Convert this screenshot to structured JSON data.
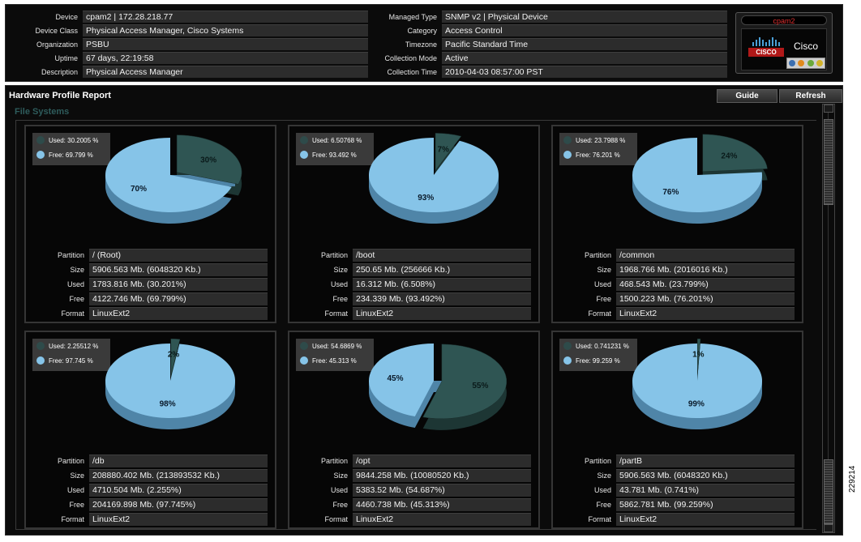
{
  "header": {
    "left": [
      {
        "label": "Device",
        "value": "cpam2 | 172.28.218.77"
      },
      {
        "label": "Device Class",
        "value": "Physical Access Manager, Cisco Systems"
      },
      {
        "label": "Organization",
        "value": "PSBU"
      },
      {
        "label": "Uptime",
        "value": "67 days, 22:19:58"
      },
      {
        "label": "Description",
        "value": "Physical Access Manager"
      }
    ],
    "right": [
      {
        "label": "Managed Type",
        "value": "SNMP v2 | Physical Device"
      },
      {
        "label": "Category",
        "value": "Access Control"
      },
      {
        "label": "Timezone",
        "value": "Pacific Standard Time"
      },
      {
        "label": "Collection Mode",
        "value": "Active"
      },
      {
        "label": "Collection Time",
        "value": "2010-04-03 08:57:00 PST"
      }
    ],
    "badge": {
      "name": "cpam2",
      "vendor": "Cisco",
      "logo_word": "CISCO"
    }
  },
  "report": {
    "title": "Hardware Profile Report",
    "section": "File Systems",
    "guide_label": "Guide",
    "refresh_label": "Refresh"
  },
  "row_labels": {
    "partition": "Partition",
    "size": "Size",
    "used": "Used",
    "free": "Free",
    "format": "Format"
  },
  "colors": {
    "used": "#2f5553",
    "used_dark": "#1d3634",
    "free": "#86c4e8",
    "free_dark": "#4f85a8",
    "legend_used_dot": "#2e4b4a",
    "legend_free_dot": "#86c4e8"
  },
  "partitions": [
    {
      "legend_used": "Used: 30.2005 %",
      "legend_free": "Free: 69.799 %",
      "used_pct": 30.2005,
      "used_label": "30%",
      "free_label": "70%",
      "partition": "/ (Root)",
      "size": "5906.563 Mb. (6048320 Kb.)",
      "used": "1783.816 Mb. (30.201%)",
      "free": "4122.746 Mb. (69.799%)",
      "format": "LinuxExt2"
    },
    {
      "legend_used": "Used: 6.50768 %",
      "legend_free": "Free: 93.492 %",
      "used_pct": 6.50768,
      "used_label": "7%",
      "free_label": "93%",
      "partition": "/boot",
      "size": "250.65 Mb. (256666 Kb.)",
      "used": "16.312 Mb. (6.508%)",
      "free": "234.339 Mb. (93.492%)",
      "format": "LinuxExt2"
    },
    {
      "legend_used": "Used: 23.7988 %",
      "legend_free": "Free: 76.201 %",
      "used_pct": 23.7988,
      "used_label": "24%",
      "free_label": "76%",
      "partition": "/common",
      "size": "1968.766 Mb. (2016016 Kb.)",
      "used": "468.543 Mb. (23.799%)",
      "free": "1500.223 Mb. (76.201%)",
      "format": "LinuxExt2"
    },
    {
      "legend_used": "Used: 2.25512 %",
      "legend_free": "Free: 97.745 %",
      "used_pct": 2.25512,
      "used_label": "2%",
      "free_label": "98%",
      "partition": "/db",
      "size": "208880.402 Mb. (213893532 Kb.)",
      "used": "4710.504 Mb. (2.255%)",
      "free": "204169.898 Mb. (97.745%)",
      "format": "LinuxExt2"
    },
    {
      "legend_used": "Used: 54.6869 %",
      "legend_free": "Free: 45.313 %",
      "used_pct": 54.6869,
      "used_label": "55%",
      "free_label": "45%",
      "partition": "/opt",
      "size": "9844.258 Mb. (10080520 Kb.)",
      "used": "5383.52 Mb. (54.687%)",
      "free": "4460.738 Mb. (45.313%)",
      "format": "LinuxExt2"
    },
    {
      "legend_used": "Used: 0.741231 %",
      "legend_free": "Free: 99.259 %",
      "used_pct": 0.741231,
      "used_label": "1%",
      "free_label": "99%",
      "partition": "/partB",
      "size": "5906.563 Mb. (6048320 Kb.)",
      "used": "43.781 Mb. (0.741%)",
      "free": "5862.781 Mb. (99.259%)",
      "format": "LinuxExt2"
    }
  ],
  "figure_number": "229214"
}
